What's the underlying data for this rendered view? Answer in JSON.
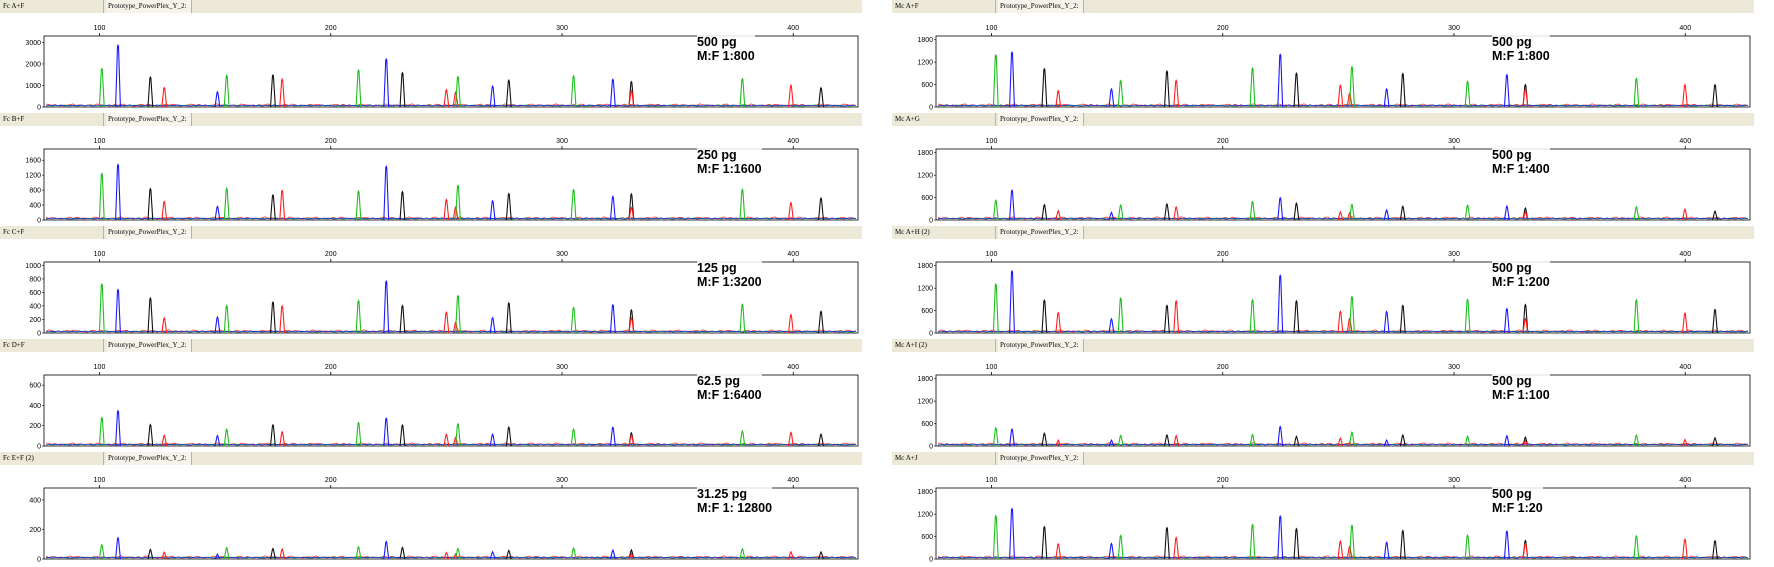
{
  "colors": {
    "blue": "#1a1aff",
    "green": "#1fbf1f",
    "black": "#111111",
    "red": "#ff2020",
    "header_bg": "#ece9d8"
  },
  "x_ticks": [
    100,
    200,
    300,
    400
  ],
  "columns": [
    {
      "panels": [
        {
          "sample": "Fc A+F",
          "panel": "Prototype_PowerPlex_Y_2:",
          "amount": "500 pg",
          "ratio": "M:F 1:800",
          "yticks": [
            "3000",
            "2000",
            "1000",
            "0"
          ],
          "ymax": 3300,
          "scale": 1.0
        },
        {
          "sample": "Fc B+F",
          "panel": "Prototype_PowerPlex_Y_2:",
          "amount": "250 pg",
          "ratio": "M:F 1:1600",
          "yticks": [
            "1600",
            "1200",
            "800",
            "400",
            "0"
          ],
          "ymax": 1900,
          "scale": 0.55
        },
        {
          "sample": "Fc C+F",
          "panel": "Prototype_PowerPlex_Y_2:",
          "amount": "125 pg",
          "ratio": "M:F 1:3200",
          "yticks": [
            "1000",
            "800",
            "600",
            "400",
            "200",
            "0"
          ],
          "ymax": 1050,
          "scale": 0.3
        },
        {
          "sample": "Fc D+F",
          "panel": "Prototype_PowerPlex_Y_2:",
          "amount": "62.5 pg",
          "ratio": "M:F 1:6400",
          "yticks": [
            "600",
            "400",
            "200",
            "0"
          ],
          "ymax": 700,
          "scale": 0.13
        },
        {
          "sample": "Fc E+F (2)",
          "panel": "Prototype_PowerPlex_Y_2:",
          "amount": "31.25 pg",
          "ratio": "M:F 1: 12800",
          "yticks": [
            "400",
            "200",
            "0"
          ],
          "ymax": 480,
          "scale": 0.05
        }
      ]
    },
    {
      "panels": [
        {
          "sample": "Mc A+F",
          "panel": "Prototype_PowerPlex_Y_2:",
          "amount": "500 pg",
          "ratio": "M:F 1:800",
          "yticks": [
            "1800",
            "1200",
            "600",
            "0"
          ],
          "ymax": 1900,
          "scale": 0.6
        },
        {
          "sample": "Mc A+G",
          "panel": "Prototype_PowerPlex_Y_2:",
          "amount": "500 pg",
          "ratio": "M:F 1:400",
          "yticks": [
            "1800",
            "1200",
            "600",
            "0"
          ],
          "ymax": 1900,
          "scale": 0.28
        },
        {
          "sample": "Mc A+H (2)",
          "panel": "Prototype_PowerPlex_Y_2:",
          "amount": "500 pg",
          "ratio": "M:F 1:200",
          "yticks": [
            "1800",
            "1200",
            "600",
            "0"
          ],
          "ymax": 1900,
          "scale": 0.6
        },
        {
          "sample": "Mc A+I (2)",
          "panel": "Prototype_PowerPlex_Y_2:",
          "amount": "500 pg",
          "ratio": "M:F 1:100",
          "yticks": [
            "1800",
            "1200",
            "600",
            "0"
          ],
          "ymax": 1900,
          "scale": 0.2
        },
        {
          "sample": "Mc A+J",
          "panel": "Prototype_PowerPlex_Y_2:",
          "amount": "500 pg",
          "ratio": "M:F 1:20",
          "yticks": [
            "1800",
            "1200",
            "600",
            "0"
          ],
          "ymax": 1900,
          "scale": 0.52
        }
      ]
    }
  ],
  "chart_data": {
    "type": "line",
    "description_free": true,
    "x_range": [
      75,
      430
    ],
    "peaks": [
      {
        "x": 101,
        "h": 2100,
        "color": "green"
      },
      {
        "x": 108,
        "h": 2500,
        "color": "blue"
      },
      {
        "x": 122,
        "h": 1500,
        "color": "black"
      },
      {
        "x": 128,
        "h": 800,
        "color": "red"
      },
      {
        "x": 151,
        "h": 700,
        "color": "blue"
      },
      {
        "x": 155,
        "h": 1350,
        "color": "green"
      },
      {
        "x": 175,
        "h": 1400,
        "color": "black"
      },
      {
        "x": 179,
        "h": 1250,
        "color": "red"
      },
      {
        "x": 212,
        "h": 1550,
        "color": "green"
      },
      {
        "x": 224,
        "h": 2300,
        "color": "blue"
      },
      {
        "x": 231,
        "h": 1400,
        "color": "black"
      },
      {
        "x": 250,
        "h": 900,
        "color": "red"
      },
      {
        "x": 254,
        "h": 600,
        "color": "red"
      },
      {
        "x": 255,
        "h": 1600,
        "color": "green"
      },
      {
        "x": 270,
        "h": 850,
        "color": "blue"
      },
      {
        "x": 277,
        "h": 1300,
        "color": "black"
      },
      {
        "x": 305,
        "h": 1300,
        "color": "green"
      },
      {
        "x": 322,
        "h": 1250,
        "color": "blue"
      },
      {
        "x": 330,
        "h": 1100,
        "color": "black"
      },
      {
        "x": 330,
        "h": 700,
        "color": "red"
      },
      {
        "x": 378,
        "h": 1300,
        "color": "green"
      },
      {
        "x": 399,
        "h": 900,
        "color": "red"
      },
      {
        "x": 412,
        "h": 950,
        "color": "black"
      }
    ]
  }
}
